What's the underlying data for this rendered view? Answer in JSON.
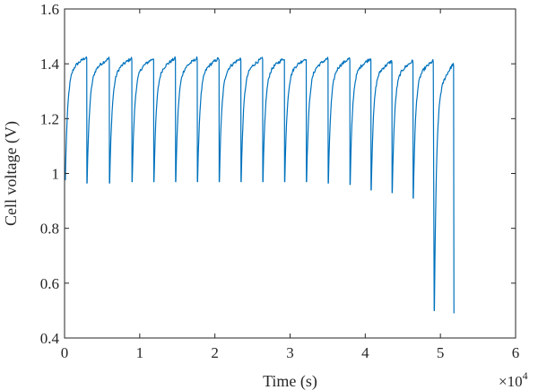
{
  "chart_data": {
    "type": "line",
    "xlabel": "Time (s)",
    "ylabel": "Cell voltage (V)",
    "x_multiplier_label": "×10",
    "x_multiplier_exponent": "4",
    "xlim": [
      0,
      6
    ],
    "ylim": [
      0.4,
      1.6
    ],
    "x_ticks": [
      0,
      1,
      2,
      3,
      4,
      5,
      6
    ],
    "x_tick_labels": [
      "0",
      "1",
      "2",
      "3",
      "4",
      "5",
      "6"
    ],
    "y_ticks": [
      0.4,
      0.6,
      0.8,
      1.0,
      1.2,
      1.4,
      1.6
    ],
    "y_tick_labels": [
      "0.4",
      "0.6",
      "0.8",
      "1",
      "1.2",
      "1.4",
      "1.6"
    ],
    "grid": false,
    "box": true,
    "line_color": "#0072BD",
    "series": [
      {
        "cycles": [
          {
            "start": 0.01,
            "end": 0.29,
            "v_start": 0.975,
            "v_end": 1.425
          },
          {
            "start": 0.3,
            "end": 0.59,
            "v_start": 0.965,
            "v_end": 1.42
          },
          {
            "start": 0.6,
            "end": 0.89,
            "v_start": 0.965,
            "v_end": 1.42
          },
          {
            "start": 0.9,
            "end": 1.18,
            "v_start": 0.97,
            "v_end": 1.42
          },
          {
            "start": 1.19,
            "end": 1.47,
            "v_start": 0.97,
            "v_end": 1.42
          },
          {
            "start": 1.48,
            "end": 1.76,
            "v_start": 0.97,
            "v_end": 1.42
          },
          {
            "start": 1.77,
            "end": 2.05,
            "v_start": 0.97,
            "v_end": 1.42
          },
          {
            "start": 2.06,
            "end": 2.34,
            "v_start": 0.97,
            "v_end": 1.42
          },
          {
            "start": 2.35,
            "end": 2.63,
            "v_start": 0.97,
            "v_end": 1.42
          },
          {
            "start": 2.64,
            "end": 2.92,
            "v_start": 0.97,
            "v_end": 1.42
          },
          {
            "start": 2.93,
            "end": 3.21,
            "v_start": 0.97,
            "v_end": 1.42
          },
          {
            "start": 3.22,
            "end": 3.5,
            "v_start": 0.97,
            "v_end": 1.42
          },
          {
            "start": 3.51,
            "end": 3.79,
            "v_start": 0.965,
            "v_end": 1.42
          },
          {
            "start": 3.8,
            "end": 4.07,
            "v_start": 0.96,
            "v_end": 1.42
          },
          {
            "start": 4.08,
            "end": 4.35,
            "v_start": 0.94,
            "v_end": 1.41
          },
          {
            "start": 4.36,
            "end": 4.63,
            "v_start": 0.93,
            "v_end": 1.41
          },
          {
            "start": 4.64,
            "end": 4.9,
            "v_start": 0.91,
            "v_end": 1.41
          },
          {
            "start": 4.92,
            "end": 5.17,
            "v_start": 0.5,
            "v_end": 1.4
          }
        ],
        "final_drop": {
          "x": 5.18,
          "y": 0.49
        }
      }
    ]
  }
}
